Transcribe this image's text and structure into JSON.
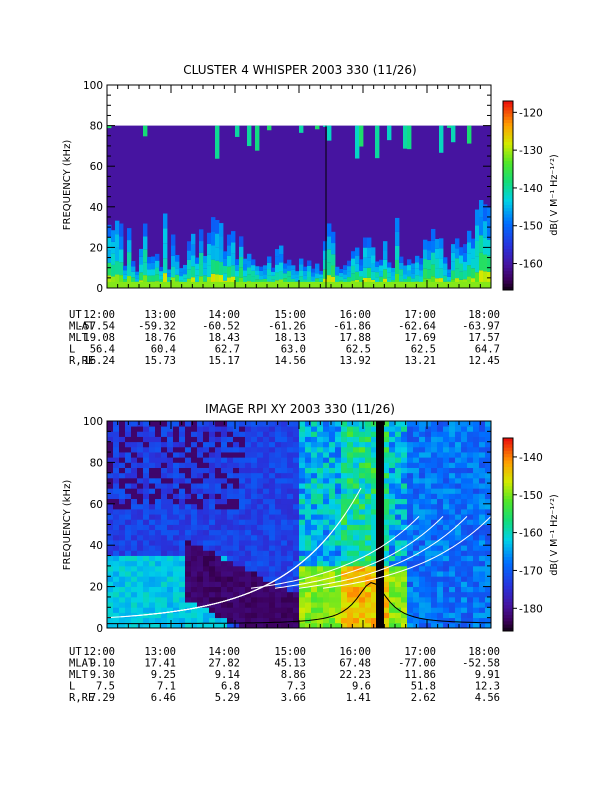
{
  "chart_data": [
    {
      "type": "heatmap",
      "title": "CLUSTER 4 WHISPER 2003 330 (11/26)",
      "ylabel": "FREQUENCY (kHz)",
      "ylim": [
        0,
        100
      ],
      "yticks": [
        "0",
        "20",
        "40",
        "60",
        "80",
        "100"
      ],
      "xticks": [
        "12:00",
        "13:00",
        "14:00",
        "15:00",
        "16:00",
        "17:00",
        "18:00"
      ],
      "colorbar": {
        "label": "dB( V M⁻¹ Hz⁻¹ᐟ²)",
        "range": [
          -167,
          -117
        ],
        "ticks": [
          "-120",
          "-130",
          "-140",
          "-150",
          "-160"
        ],
        "colormap": "rainbow (black-purple-blue-cyan-green-yellow-red)"
      },
      "data_frequency_max_khz": 80,
      "ephemeris": {
        "rows": [
          {
            "label": "UT",
            "values": [
              "12:00",
              "13:00",
              "14:00",
              "15:00",
              "16:00",
              "17:00",
              "18:00"
            ]
          },
          {
            "label": "MLAT",
            "values": [
              "-57.54",
              "-59.32",
              "-60.52",
              "-61.26",
              "-61.86",
              "-62.64",
              "-63.97"
            ]
          },
          {
            "label": "MLT",
            "values": [
              "19.08",
              "18.76",
              "18.43",
              "18.13",
              "17.88",
              "17.69",
              "17.57"
            ]
          },
          {
            "label": "L",
            "values": [
              "56.4",
              "60.4",
              "62.7",
              "63.0",
              "62.5",
              "62.5",
              "64.7"
            ]
          },
          {
            "label": "R,RE",
            "values": [
              "16.24",
              "15.73",
              "15.17",
              "14.56",
              "13.92",
              "13.21",
              "12.45"
            ]
          }
        ]
      }
    },
    {
      "type": "heatmap",
      "title": "IMAGE RPI XY 2003 330 (11/26)",
      "ylabel": "FREQUENCY (kHz)",
      "ylim": [
        0,
        100
      ],
      "yticks": [
        "0",
        "20",
        "40",
        "60",
        "80",
        "100"
      ],
      "xticks": [
        "12:00",
        "13:00",
        "14:00",
        "15:00",
        "16:00",
        "17:00",
        "18:00"
      ],
      "colorbar": {
        "label": "dB( V M⁻¹ Hz⁻¹ᐟ²)",
        "range": [
          -186,
          -135
        ],
        "ticks": [
          "-140",
          "-150",
          "-160",
          "-170",
          "-180"
        ],
        "colormap": "rainbow (black-purple-blue-cyan-green-yellow-red)"
      },
      "overlays": "white and black frequency curves",
      "ephemeris": {
        "rows": [
          {
            "label": "UT",
            "values": [
              "12:00",
              "13:00",
              "14:00",
              "15:00",
              "16:00",
              "17:00",
              "18:00"
            ]
          },
          {
            "label": "MLAT",
            "values": [
              "9.10",
              "17.41",
              "27.82",
              "45.13",
              "67.48",
              "-77.00",
              "-52.58"
            ]
          },
          {
            "label": "MLT",
            "values": [
              "9.30",
              "9.25",
              "9.14",
              "8.86",
              "22.23",
              "11.86",
              "9.91"
            ]
          },
          {
            "label": "L",
            "values": [
              "7.5",
              "7.1",
              "6.8",
              "7.3",
              "9.6",
              "51.8",
              "12.3"
            ]
          },
          {
            "label": "R,RE",
            "values": [
              "7.29",
              "6.46",
              "5.29",
              "3.66",
              "1.41",
              "2.62",
              "4.56"
            ]
          }
        ]
      }
    }
  ]
}
